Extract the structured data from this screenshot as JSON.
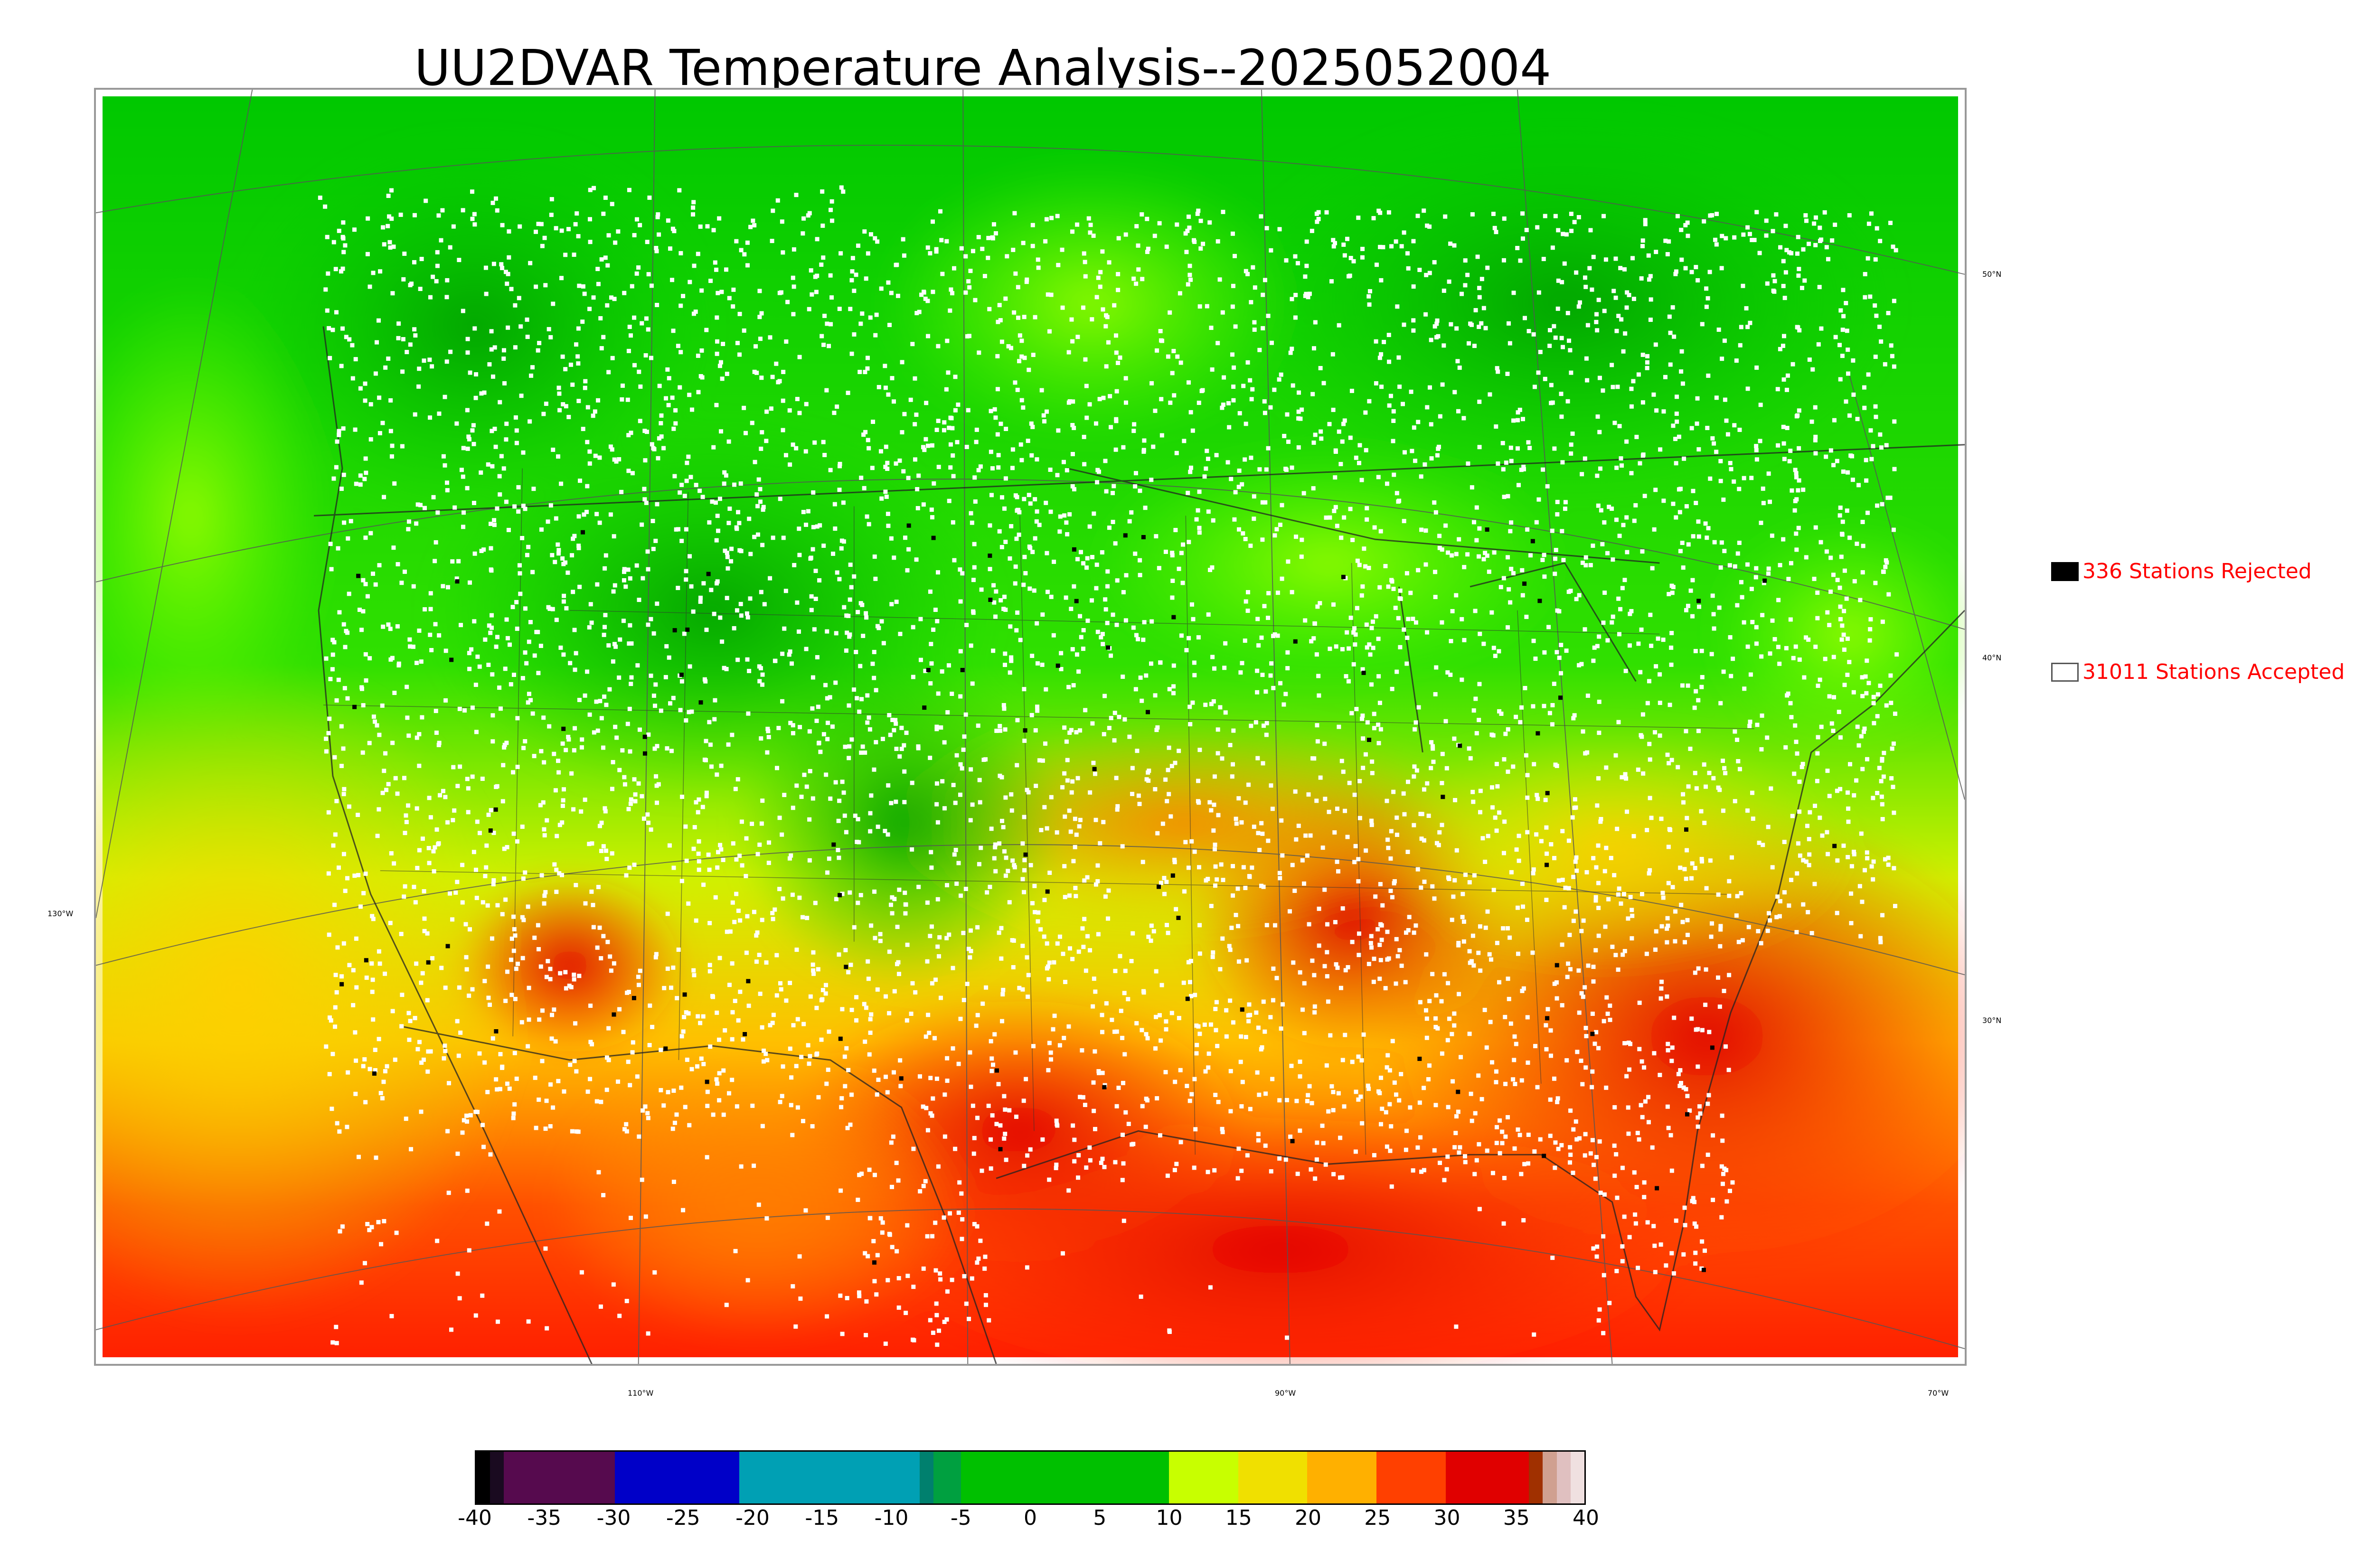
{
  "title": "UU2DVAR Temperature Analysis--2025052004",
  "legend": {
    "rejected": {
      "label": "336 Stations Rejected",
      "color": "#000000"
    },
    "accepted": {
      "label": "31011 Stations Accepted",
      "color": "#ffffff"
    },
    "text_color": "#ff0000"
  },
  "graticule_labels": {
    "lat": [
      "50°N",
      "40°N",
      "30°N"
    ],
    "lon": [
      "130°W",
      "110°W",
      "90°W",
      "70°W"
    ]
  },
  "colorbar": {
    "min": -40,
    "max": 40,
    "ticks": [
      "-40",
      "-35",
      "-30",
      "-25",
      "-20",
      "-15",
      "-10",
      "-5",
      "0",
      "5",
      "10",
      "15",
      "20",
      "25",
      "30",
      "35",
      "40"
    ],
    "stops": [
      {
        "from": -40,
        "to": -39,
        "color": "#000000"
      },
      {
        "from": -39,
        "to": -38,
        "color": "#1a0a20"
      },
      {
        "from": -38,
        "to": -30,
        "color": "#560a4e"
      },
      {
        "from": -30,
        "to": -21,
        "color": "#0000c8"
      },
      {
        "from": -21,
        "to": -8,
        "color": "#00a0b4"
      },
      {
        "from": -8,
        "to": -7,
        "color": "#00806e"
      },
      {
        "from": -7,
        "to": -5,
        "color": "#00a040"
      },
      {
        "from": -5,
        "to": 10,
        "color": "#00c000"
      },
      {
        "from": 10,
        "to": 15,
        "color": "#c8ff00"
      },
      {
        "from": 15,
        "to": 20,
        "color": "#f0e000"
      },
      {
        "from": 20,
        "to": 25,
        "color": "#ffb000"
      },
      {
        "from": 25,
        "to": 30,
        "color": "#ff4000"
      },
      {
        "from": 30,
        "to": 36,
        "color": "#e00000"
      },
      {
        "from": 36,
        "to": 37,
        "color": "#a03000"
      },
      {
        "from": 37,
        "to": 38,
        "color": "#d0a090"
      },
      {
        "from": 38,
        "to": 39,
        "color": "#e0c0c0"
      },
      {
        "from": 39,
        "to": 40,
        "color": "#f0e0e0"
      }
    ]
  }
}
